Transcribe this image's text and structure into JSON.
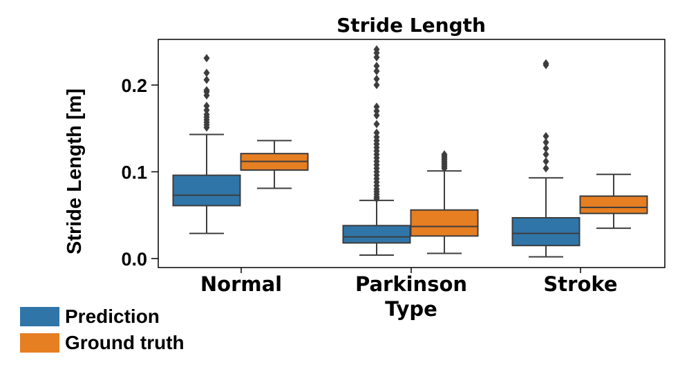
{
  "chart_data": {
    "type": "box",
    "title": "Stride Length",
    "xlabel": "Type",
    "ylabel": "Stride Length [m]",
    "ylim": [
      -0.01,
      0.25
    ],
    "yticks": [
      0.0,
      0.1,
      0.2
    ],
    "ytick_labels": [
      "0.0",
      "0.1",
      "0.2"
    ],
    "categories": [
      "Normal",
      "Parkinson",
      "Stroke"
    ],
    "series": [
      {
        "name": "Prediction",
        "color": "#2f75a8",
        "boxes": [
          {
            "category": "Normal",
            "whislo": 0.029,
            "q1": 0.061,
            "med": 0.073,
            "q3": 0.096,
            "whishi": 0.143,
            "fliers": [
              0.151,
              0.154,
              0.157,
              0.16,
              0.163,
              0.166,
              0.171,
              0.176,
              0.188,
              0.192,
              0.194,
              0.206,
              0.214,
              0.231
            ]
          },
          {
            "category": "Parkinson",
            "whislo": 0.004,
            "q1": 0.018,
            "med": 0.025,
            "q3": 0.038,
            "whishi": 0.067,
            "fliers": [
              0.069,
              0.071,
              0.074,
              0.077,
              0.08,
              0.084,
              0.088,
              0.092,
              0.096,
              0.1,
              0.104,
              0.108,
              0.112,
              0.116,
              0.12,
              0.124,
              0.128,
              0.132,
              0.136,
              0.14,
              0.145,
              0.155,
              0.165,
              0.17,
              0.175,
              0.2,
              0.207,
              0.216,
              0.222,
              0.232,
              0.237,
              0.241
            ]
          },
          {
            "category": "Stroke",
            "whislo": 0.002,
            "q1": 0.015,
            "med": 0.029,
            "q3": 0.047,
            "whishi": 0.093,
            "fliers": [
              0.104,
              0.112,
              0.12,
              0.127,
              0.134,
              0.141,
              0.223,
              0.225
            ]
          }
        ]
      },
      {
        "name": "Ground truth",
        "color": "#e67e22",
        "boxes": [
          {
            "category": "Normal",
            "whislo": 0.081,
            "q1": 0.102,
            "med": 0.112,
            "q3": 0.121,
            "whishi": 0.136,
            "fliers": []
          },
          {
            "category": "Parkinson",
            "whislo": 0.006,
            "q1": 0.026,
            "med": 0.037,
            "q3": 0.056,
            "whishi": 0.101,
            "fliers": [
              0.104,
              0.106,
              0.108,
              0.11,
              0.112,
              0.114,
              0.116,
              0.118,
              0.12
            ]
          },
          {
            "category": "Stroke",
            "whislo": 0.035,
            "q1": 0.052,
            "med": 0.059,
            "q3": 0.072,
            "whishi": 0.097,
            "fliers": []
          }
        ]
      }
    ],
    "legend_position": "bottom-left outside"
  }
}
